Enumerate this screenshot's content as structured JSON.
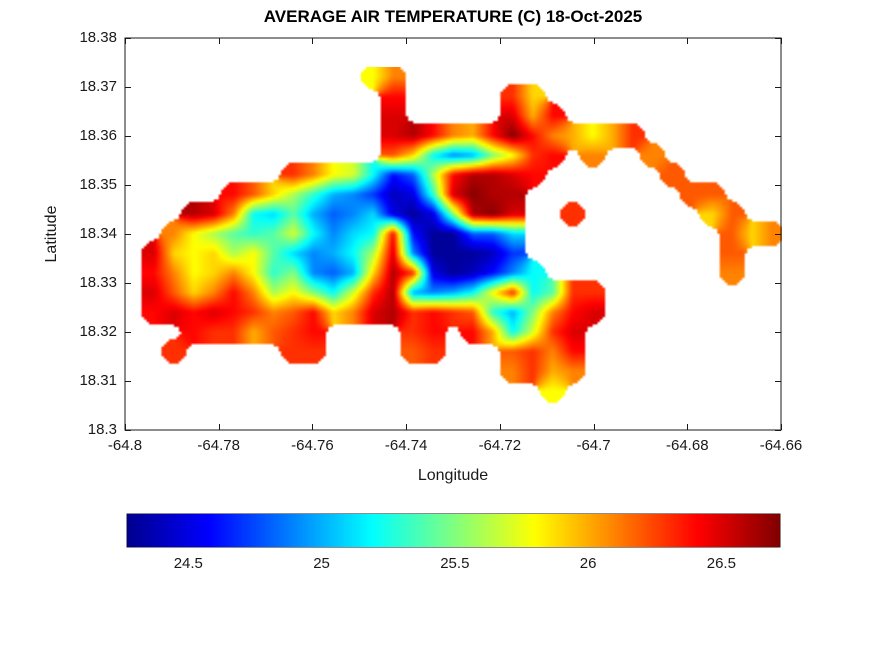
{
  "figure": {
    "title": "AVERAGE AIR TEMPERATURE (C) 18-Oct-2025",
    "xlabel": "Longitude",
    "ylabel": "Latitude",
    "axis_color": "#1a1a1a",
    "background_color": "#ffffff"
  },
  "axes": {
    "xlim": [
      -64.8,
      -64.66
    ],
    "ylim": [
      18.3,
      18.38
    ],
    "xticks": [
      -64.8,
      -64.78,
      -64.76,
      -64.74,
      -64.72,
      -64.7,
      -64.68,
      -64.66
    ],
    "xtick_labels": [
      "-64.8",
      "-64.78",
      "-64.76",
      "-64.74",
      "-64.72",
      "-64.7",
      "-64.68",
      "-64.66"
    ],
    "yticks": [
      18.38,
      18.37,
      18.36,
      18.35,
      18.34,
      18.33,
      18.32,
      18.31,
      18.3
    ],
    "ytick_labels": [
      "18.38",
      "18.37",
      "18.36",
      "18.35",
      "18.34",
      "18.33",
      "18.32",
      "18.31",
      "18.3"
    ],
    "box": "on",
    "grid": "off"
  },
  "colorbar": {
    "orientation": "horizontal",
    "colormap": "jet",
    "min": 24.27,
    "max": 26.72,
    "ticks": [
      24.5,
      25,
      25.5,
      26,
      26.5
    ],
    "tick_labels": [
      "24.5",
      "25",
      "25.5",
      "26",
      "26.5"
    ],
    "jet_stops": [
      {
        "t": 0.0,
        "color": "#00008F"
      },
      {
        "t": 0.125,
        "color": "#0000FF"
      },
      {
        "t": 0.375,
        "color": "#00FFFF"
      },
      {
        "t": 0.625,
        "color": "#FFFF00"
      },
      {
        "t": 0.875,
        "color": "#FF0000"
      },
      {
        "t": 1.0,
        "color": "#800000"
      }
    ]
  },
  "chart_data": {
    "type": "heatmap",
    "title": "AVERAGE AIR TEMPERATURE (C) 18-Oct-2025",
    "xlabel": "Longitude",
    "ylabel": "Latitude",
    "units": "C",
    "colormap": "jet",
    "value_range": [
      24.27,
      26.72
    ],
    "legend_position": "bottom-colorbar",
    "lon_start": -64.798,
    "lon_step": 0.00425,
    "lat_start": 18.372,
    "lat_step": -0.004,
    "note": "grid rows are latitude bands from north (18.372) to south; null = sea / no data",
    "grid": [
      [
        null,
        null,
        null,
        null,
        null,
        null,
        null,
        null,
        null,
        null,
        null,
        null,
        25.8,
        26.1,
        null,
        null,
        null,
        null,
        null,
        null,
        null,
        null,
        null,
        null,
        null,
        null,
        null,
        null,
        null,
        null,
        null,
        null,
        null
      ],
      [
        null,
        null,
        null,
        null,
        null,
        null,
        null,
        null,
        null,
        null,
        null,
        null,
        null,
        26.4,
        null,
        null,
        null,
        null,
        null,
        26.3,
        25.9,
        null,
        null,
        null,
        null,
        null,
        null,
        null,
        null,
        null,
        null,
        null,
        null
      ],
      [
        null,
        null,
        null,
        null,
        null,
        null,
        null,
        null,
        null,
        null,
        null,
        null,
        null,
        26.5,
        null,
        null,
        null,
        null,
        null,
        26.5,
        26.0,
        26.4,
        null,
        null,
        null,
        null,
        null,
        null,
        null,
        null,
        null,
        null,
        null
      ],
      [
        null,
        null,
        null,
        null,
        null,
        null,
        null,
        null,
        null,
        null,
        null,
        null,
        null,
        26.5,
        26.6,
        26.4,
        26.1,
        26.0,
        26.4,
        26.7,
        26.4,
        26.1,
        26.0,
        25.8,
        26.0,
        26.3,
        null,
        null,
        null,
        null,
        null,
        null,
        null
      ],
      [
        null,
        null,
        null,
        null,
        null,
        null,
        null,
        null,
        null,
        null,
        null,
        null,
        null,
        26.2,
        25.9,
        25.2,
        24.9,
        25.0,
        25.5,
        25.8,
        26.3,
        26.4,
        null,
        26.1,
        null,
        null,
        26.1,
        null,
        null,
        null,
        null,
        null,
        null
      ],
      [
        null,
        null,
        null,
        null,
        null,
        null,
        null,
        null,
        26.3,
        26.1,
        25.8,
        25.7,
        25.2,
        24.6,
        24.8,
        25.6,
        26.4,
        26.6,
        26.6,
        26.5,
        26.4,
        null,
        null,
        null,
        null,
        null,
        null,
        26.2,
        null,
        null,
        null,
        null,
        null
      ],
      [
        null,
        null,
        null,
        null,
        null,
        26.4,
        26.2,
        25.9,
        25.6,
        25.3,
        25.0,
        24.9,
        24.7,
        24.4,
        24.5,
        25.3,
        26.5,
        26.7,
        26.6,
        26.6,
        null,
        null,
        null,
        null,
        null,
        null,
        null,
        null,
        26.2,
        26.2,
        null,
        null,
        null
      ],
      [
        null,
        null,
        null,
        26.6,
        26.5,
        26.1,
        25.2,
        25.1,
        25.4,
        25.0,
        24.8,
        24.9,
        25.1,
        24.5,
        24.3,
        24.5,
        25.5,
        26.6,
        26.7,
        26.5,
        null,
        null,
        26.3,
        null,
        null,
        null,
        null,
        null,
        null,
        25.9,
        26.2,
        null,
        null
      ],
      [
        null,
        null,
        26.1,
        25.8,
        25.6,
        25.4,
        25.3,
        25.4,
        25.7,
        25.2,
        24.9,
        25.1,
        25.2,
        26.4,
        24.6,
        24.3,
        24.3,
        24.8,
        24.8,
        25.1,
        null,
        null,
        null,
        null,
        null,
        null,
        null,
        null,
        null,
        null,
        26.2,
        25.9,
        26.1
      ],
      [
        null,
        26.5,
        25.9,
        25.8,
        25.9,
        25.6,
        25.8,
        25.4,
        25.1,
        24.9,
        25.0,
        25.2,
        25.6,
        26.5,
        24.9,
        24.3,
        24.3,
        24.3,
        24.4,
        24.7,
        null,
        null,
        null,
        null,
        null,
        null,
        null,
        null,
        null,
        null,
        26.2,
        null,
        null
      ],
      [
        null,
        26.4,
        26.1,
        25.8,
        25.9,
        26.1,
        25.8,
        25.3,
        25.5,
        24.9,
        24.8,
        25.0,
        25.9,
        26.6,
        26.3,
        24.5,
        24.3,
        24.4,
        24.6,
        24.9,
        25.2,
        null,
        null,
        null,
        null,
        null,
        null,
        null,
        null,
        null,
        26.1,
        null,
        null
      ],
      [
        null,
        26.5,
        26.2,
        25.9,
        26.1,
        26.4,
        26.1,
        25.6,
        25.8,
        25.5,
        25.2,
        25.7,
        26.3,
        26.6,
        25.0,
        24.9,
        25.0,
        25.2,
        25.8,
        26.3,
        25.2,
        25.4,
        26.3,
        26.3,
        null,
        null,
        null,
        null,
        null,
        null,
        null,
        null,
        null
      ],
      [
        null,
        26.4,
        26.5,
        26.4,
        26.5,
        26.4,
        26.3,
        26.1,
        26.2,
        26.4,
        25.9,
        26.1,
        26.5,
        26.6,
        26.3,
        26.4,
        26.3,
        26.2,
        25.3,
        25.0,
        25.5,
        26.1,
        26.4,
        26.5,
        null,
        null,
        null,
        null,
        null,
        null,
        null,
        null,
        null
      ],
      [
        null,
        null,
        null,
        26.4,
        26.3,
        26.3,
        26.0,
        26.2,
        26.3,
        26.4,
        null,
        null,
        null,
        null,
        26.3,
        26.4,
        null,
        26.4,
        26.0,
        25.2,
        25.7,
        26.3,
        26.5,
        null,
        null,
        null,
        null,
        null,
        null,
        null,
        null,
        null,
        null
      ],
      [
        null,
        null,
        26.3,
        null,
        null,
        null,
        null,
        null,
        26.3,
        26.3,
        null,
        null,
        null,
        null,
        26.2,
        26.3,
        null,
        null,
        null,
        26.2,
        26.3,
        26.1,
        26.4,
        null,
        null,
        null,
        null,
        null,
        null,
        null,
        null,
        null,
        null
      ],
      [
        null,
        null,
        null,
        null,
        null,
        null,
        null,
        null,
        null,
        null,
        null,
        null,
        null,
        null,
        null,
        null,
        null,
        null,
        null,
        26.1,
        26.3,
        26.0,
        26.1,
        null,
        null,
        null,
        null,
        null,
        null,
        null,
        null,
        null,
        null
      ],
      [
        null,
        null,
        null,
        null,
        null,
        null,
        null,
        null,
        null,
        null,
        null,
        null,
        null,
        null,
        null,
        null,
        null,
        null,
        null,
        null,
        null,
        25.8,
        null,
        null,
        null,
        null,
        null,
        null,
        null,
        null,
        null,
        null,
        null
      ],
      [
        null,
        null,
        null,
        null,
        null,
        null,
        null,
        null,
        null,
        null,
        null,
        null,
        null,
        null,
        null,
        null,
        null,
        null,
        null,
        null,
        null,
        null,
        null,
        null,
        null,
        null,
        null,
        null,
        null,
        null,
        null,
        null,
        null
      ]
    ]
  }
}
